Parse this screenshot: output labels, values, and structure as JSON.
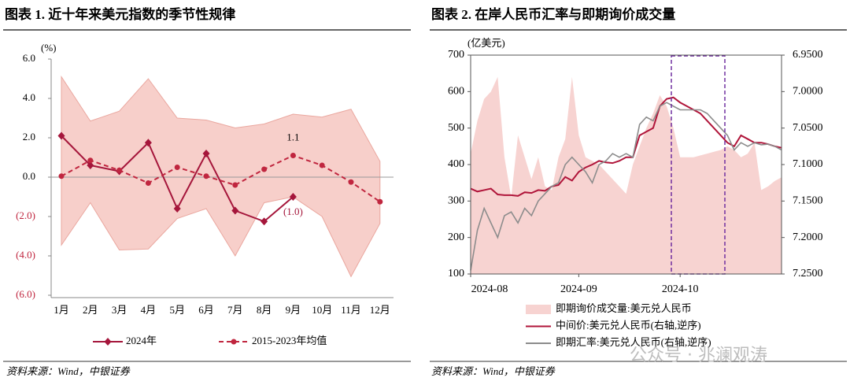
{
  "chart_data": [
    {
      "type": "line",
      "title": "图表 1. 近十年来美元指数的季节性规律",
      "y_label": "(%)",
      "source": "资料来源：Wind，中银证券",
      "categories": [
        "1月",
        "2月",
        "3月",
        "4月",
        "5月",
        "6月",
        "7月",
        "8月",
        "9月",
        "10月",
        "11月",
        "12月"
      ],
      "ylim": [
        -6,
        6
      ],
      "yticks": [
        {
          "value": 6,
          "label": "6.0"
        },
        {
          "value": 4,
          "label": "4.0"
        },
        {
          "value": 2,
          "label": "2.0"
        },
        {
          "value": 0,
          "label": "0.0"
        },
        {
          "value": -2,
          "label": "(2.0)"
        },
        {
          "value": -4,
          "label": "(4.0)"
        },
        {
          "value": -6,
          "label": "(6.0)"
        }
      ],
      "band": {
        "color": "#f7cfca",
        "upper": [
          5.1,
          2.85,
          3.35,
          5.0,
          3.0,
          2.9,
          2.5,
          2.7,
          3.2,
          3.05,
          3.45,
          0.8
        ],
        "lower": [
          -3.45,
          -1.3,
          -3.7,
          -3.65,
          -2.1,
          -1.6,
          -4.0,
          -1.3,
          -1.0,
          -2.0,
          -5.05,
          -2.35
        ]
      },
      "series": [
        {
          "name": "2024年",
          "color": "#a5163b",
          "marker": "diamond",
          "values": [
            2.1,
            0.6,
            0.3,
            1.75,
            -1.6,
            1.2,
            -1.7,
            -2.25,
            -1.0,
            null,
            null,
            null
          ],
          "value_labels": [
            null,
            null,
            null,
            null,
            null,
            null,
            null,
            null,
            "(1.0)",
            null,
            null,
            null
          ]
        },
        {
          "name": "2015-2023年均值",
          "color": "#c0263f",
          "marker": "circle",
          "dashed": true,
          "values": [
            0.05,
            0.85,
            0.35,
            -0.3,
            0.5,
            0.05,
            -0.4,
            0.4,
            1.1,
            0.6,
            -0.25,
            -1.25
          ],
          "value_labels": [
            null,
            null,
            null,
            null,
            null,
            null,
            null,
            null,
            "1.1",
            null,
            null,
            null
          ]
        }
      ]
    },
    {
      "type": "combo",
      "title": "图表 2. 在岸人民币汇率与即期询价成交量",
      "y_label": "(亿美元)",
      "source": "资料来源：Wind，中银证券",
      "watermark": "公众号 · 兆澜观涛",
      "categories": [
        "2024-08",
        null,
        null,
        null,
        null,
        null,
        null,
        null,
        null,
        null,
        null,
        null,
        null,
        null,
        null,
        null,
        "2024-09",
        null,
        null,
        null,
        null,
        null,
        null,
        null,
        null,
        null,
        null,
        null,
        null,
        null,
        null,
        "2024-10",
        null,
        null,
        null,
        null,
        null,
        null,
        null,
        null,
        null,
        null,
        null,
        null,
        null,
        null,
        null
      ],
      "ylim": [
        100,
        700
      ],
      "yticks": [
        100,
        200,
        300,
        400,
        500,
        600,
        700
      ],
      "y2lim": [
        6.95,
        7.25
      ],
      "y2_inverted": true,
      "y2ticks": [
        {
          "value": 6.95,
          "label": "6.9500"
        },
        {
          "value": 7.0,
          "label": "7.0000"
        },
        {
          "value": 7.05,
          "label": "7.0500"
        },
        {
          "value": 7.1,
          "label": "7.1000"
        },
        {
          "value": 7.15,
          "label": "7.1500"
        },
        {
          "value": 7.2,
          "label": "7.2000"
        },
        {
          "value": 7.25,
          "label": "7.2500"
        }
      ],
      "series": [
        {
          "name": "即期询价成交量:美元兑人民币",
          "type": "area",
          "color": "#f7d3d1",
          "values": [
            430,
            520,
            580,
            600,
            640,
            420,
            310,
            480,
            420,
            360,
            420,
            340,
            330,
            420,
            470,
            640,
            480,
            420,
            410,
            400,
            380,
            360,
            340,
            320,
            400,
            450,
            500,
            540,
            590,
            560,
            500,
            420,
            420,
            420,
            425,
            430,
            435,
            440,
            450,
            440,
            420,
            430,
            460,
            330,
            340,
            355,
            365
          ]
        },
        {
          "name": "中间价:美元兑人民币(右轴,逆序)",
          "type": "line",
          "axis": "y2",
          "color": "#b0153a",
          "values": [
            7.133,
            7.137,
            7.135,
            7.133,
            7.141,
            7.142,
            7.142,
            7.143,
            7.138,
            7.139,
            7.135,
            7.136,
            7.13,
            7.128,
            7.117,
            7.122,
            7.11,
            7.104,
            7.1,
            7.095,
            7.097,
            7.098,
            7.095,
            7.09,
            7.09,
            7.06,
            7.055,
            7.05,
            7.02,
            7.01,
            7.008,
            7.015,
            7.02,
            7.025,
            7.03,
            7.04,
            7.05,
            7.06,
            7.07,
            7.075,
            7.06,
            7.065,
            7.07,
            7.07,
            7.072,
            7.075,
            7.077
          ]
        },
        {
          "name": "即期汇率:美元兑人民币(右轴,逆序)",
          "type": "line",
          "axis": "y2",
          "color": "#8c8c8c",
          "values": [
            7.245,
            7.19,
            7.16,
            7.18,
            7.2,
            7.17,
            7.165,
            7.18,
            7.16,
            7.17,
            7.15,
            7.14,
            7.13,
            7.125,
            7.1,
            7.09,
            7.1,
            7.11,
            7.125,
            7.1,
            7.095,
            7.085,
            7.09,
            7.085,
            7.09,
            7.045,
            7.035,
            7.04,
            7.02,
            7.015,
            7.02,
            7.025,
            7.025,
            7.025,
            7.025,
            7.03,
            7.04,
            7.05,
            7.06,
            7.08,
            7.07,
            7.075,
            7.07,
            7.073,
            7.072,
            7.075,
            7.08
          ]
        }
      ]
    }
  ]
}
